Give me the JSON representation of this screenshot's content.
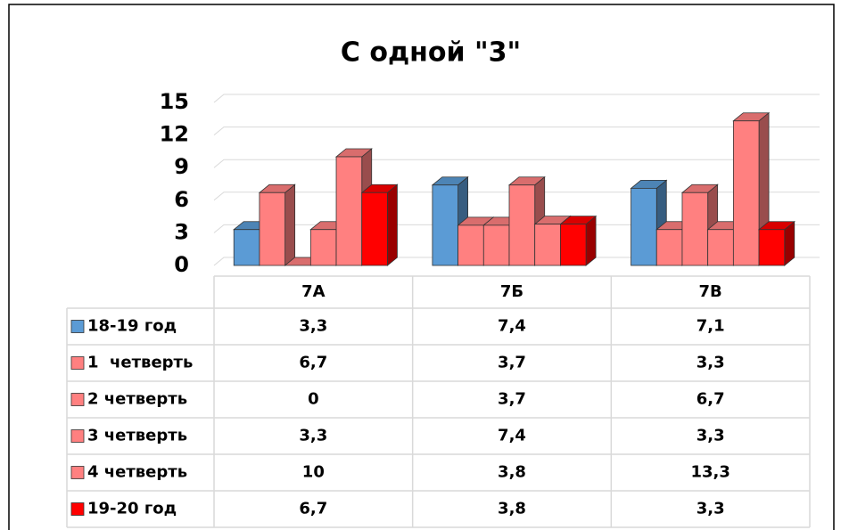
{
  "chart_data": {
    "type": "bar3d",
    "title": "С одной \"3\"",
    "categories": [
      "7А",
      "7Б",
      "7В"
    ],
    "series": [
      {
        "name": "18-19 год",
        "color": "#5b9bd5",
        "values": [
          3.3,
          7.4,
          7.1
        ],
        "value_labels": [
          "3,3",
          "7,4",
          "7,1"
        ]
      },
      {
        "name": "1  четверть",
        "color": "#ff8080",
        "values": [
          6.7,
          3.7,
          3.3
        ],
        "value_labels": [
          "6,7",
          "3,7",
          "3,3"
        ]
      },
      {
        "name": "2 четверть",
        "color": "#ff8080",
        "values": [
          0,
          3.7,
          6.7
        ],
        "value_labels": [
          "0",
          "3,7",
          "6,7"
        ]
      },
      {
        "name": "3 четверть",
        "color": "#ff8080",
        "values": [
          3.3,
          7.4,
          3.3
        ],
        "value_labels": [
          "3,3",
          "7,4",
          "3,3"
        ]
      },
      {
        "name": "4 четверть",
        "color": "#ff8080",
        "values": [
          10,
          3.8,
          13.3
        ],
        "value_labels": [
          "10",
          "3,8",
          "13,3"
        ]
      },
      {
        "name": "19-20 год",
        "color": "#ff0000",
        "values": [
          6.7,
          3.8,
          3.3
        ],
        "value_labels": [
          "6,7",
          "3,8",
          "3,3"
        ]
      }
    ],
    "ylim": [
      0,
      15
    ],
    "yticks": [
      0,
      3,
      6,
      9,
      12,
      15
    ],
    "grid": true,
    "data_table": true
  }
}
